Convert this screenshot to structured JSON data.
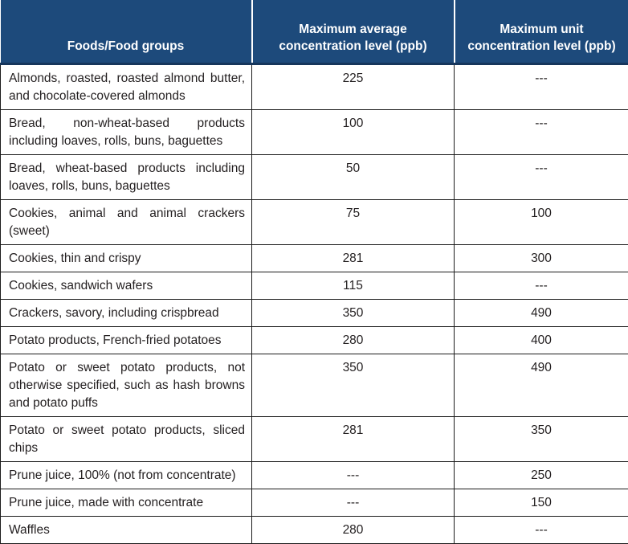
{
  "header": {
    "columns": [
      "Foods/Food groups",
      "Maximum average concentration level (ppb)",
      "Maximum unit concentration level (ppb)"
    ]
  },
  "rows": [
    {
      "food": "Almonds, roasted, roasted almond butter, and chocolate-covered almonds",
      "avg": "225",
      "unit": "---"
    },
    {
      "food": "Bread, non-wheat-based products including loaves, rolls, buns, baguettes",
      "avg": "100",
      "unit": "---"
    },
    {
      "food": "Bread, wheat-based products including loaves, rolls, buns, baguettes",
      "avg": "50",
      "unit": "---"
    },
    {
      "food": "Cookies, animal and animal crackers (sweet)",
      "avg": "75",
      "unit": "100"
    },
    {
      "food": "Cookies, thin and crispy",
      "avg": "281",
      "unit": "300"
    },
    {
      "food": "Cookies, sandwich wafers",
      "avg": "115",
      "unit": "---"
    },
    {
      "food": "Crackers, savory, including crispbread",
      "avg": "350",
      "unit": "490"
    },
    {
      "food": "Potato products, French-fried potatoes",
      "avg": "280",
      "unit": "400"
    },
    {
      "food": "Potato or sweet potato products, not otherwise specified, such as hash browns and potato puffs",
      "avg": "350",
      "unit": "490"
    },
    {
      "food": "Potato or sweet potato products, sliced chips",
      "avg": "281",
      "unit": "350"
    },
    {
      "food": "Prune juice, 100% (not from concentrate)",
      "avg": "---",
      "unit": "250"
    },
    {
      "food": "Prune juice, made with concentrate",
      "avg": "---",
      "unit": "150"
    },
    {
      "food": "Waffles",
      "avg": "280",
      "unit": "---"
    }
  ],
  "colors": {
    "header_bg": "#1d4a7b",
    "header_underline": "#16365c",
    "header_text": "#ffffff",
    "body_border": "#1c1c1c",
    "body_text": "#231f20",
    "body_bg": "#ffffff"
  }
}
